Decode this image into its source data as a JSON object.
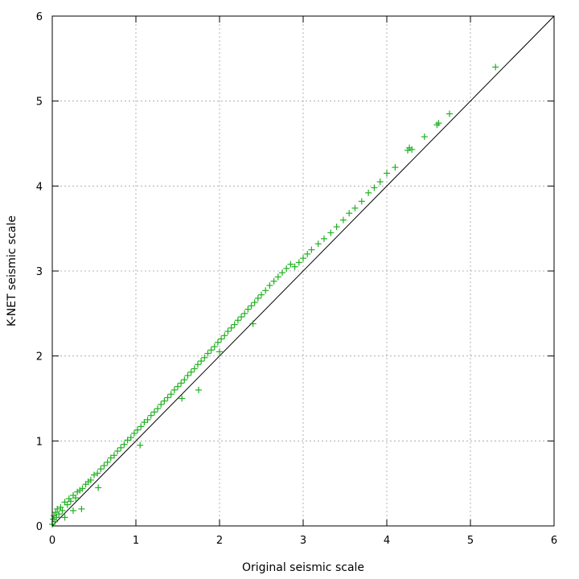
{
  "chart_data": {
    "type": "scatter",
    "title": "",
    "xlabel": "Original seismic scale",
    "ylabel": "K-NET seismic scale",
    "xlim": [
      0,
      6
    ],
    "ylim": [
      0,
      6
    ],
    "x_ticks": [
      "0",
      "1",
      "2",
      "3",
      "4",
      "5",
      "6"
    ],
    "y_ticks": [
      "0",
      "1",
      "2",
      "3",
      "4",
      "5",
      "6"
    ],
    "grid": true,
    "reference_line": {
      "from": [
        0,
        0
      ],
      "to": [
        6,
        6
      ]
    },
    "marker": "+",
    "colors": {
      "points": "#20b020",
      "reference": "#000000",
      "grid": "#a0a0a0"
    },
    "series": [
      {
        "values": [
          [
            0.0,
            0.02
          ],
          [
            0.01,
            0.08
          ],
          [
            0.02,
            0.12
          ],
          [
            0.03,
            0.05
          ],
          [
            0.04,
            0.16
          ],
          [
            0.05,
            0.1
          ],
          [
            0.06,
            0.2
          ],
          [
            0.08,
            0.14
          ],
          [
            0.1,
            0.22
          ],
          [
            0.12,
            0.18
          ],
          [
            0.15,
            0.28
          ],
          [
            0.18,
            0.25
          ],
          [
            0.2,
            0.32
          ],
          [
            0.22,
            0.29
          ],
          [
            0.25,
            0.36
          ],
          [
            0.28,
            0.33
          ],
          [
            0.3,
            0.4
          ],
          [
            0.33,
            0.42
          ],
          [
            0.36,
            0.44
          ],
          [
            0.4,
            0.49
          ],
          [
            0.43,
            0.52
          ],
          [
            0.46,
            0.54
          ],
          [
            0.5,
            0.6
          ],
          [
            0.54,
            0.62
          ],
          [
            0.58,
            0.67
          ],
          [
            0.62,
            0.71
          ],
          [
            0.66,
            0.75
          ],
          [
            0.7,
            0.8
          ],
          [
            0.74,
            0.83
          ],
          [
            0.78,
            0.88
          ],
          [
            0.82,
            0.92
          ],
          [
            0.86,
            0.96
          ],
          [
            0.9,
            1.01
          ],
          [
            0.94,
            1.04
          ],
          [
            0.98,
            1.09
          ],
          [
            1.02,
            1.13
          ],
          [
            1.06,
            1.17
          ],
          [
            1.1,
            1.22
          ],
          [
            1.14,
            1.25
          ],
          [
            1.18,
            1.3
          ],
          [
            1.22,
            1.34
          ],
          [
            1.26,
            1.38
          ],
          [
            1.3,
            1.43
          ],
          [
            1.34,
            1.47
          ],
          [
            1.38,
            1.51
          ],
          [
            1.42,
            1.55
          ],
          [
            1.46,
            1.6
          ],
          [
            1.5,
            1.64
          ],
          [
            1.54,
            1.68
          ],
          [
            1.58,
            1.72
          ],
          [
            1.62,
            1.77
          ],
          [
            1.66,
            1.81
          ],
          [
            1.7,
            1.85
          ],
          [
            1.74,
            1.9
          ],
          [
            1.78,
            1.94
          ],
          [
            1.82,
            1.98
          ],
          [
            1.86,
            2.03
          ],
          [
            1.9,
            2.07
          ],
          [
            1.94,
            2.11
          ],
          [
            1.98,
            2.16
          ],
          [
            2.02,
            2.2
          ],
          [
            2.06,
            2.24
          ],
          [
            2.1,
            2.29
          ],
          [
            2.14,
            2.33
          ],
          [
            2.18,
            2.37
          ],
          [
            2.22,
            2.42
          ],
          [
            2.26,
            2.46
          ],
          [
            2.3,
            2.5
          ],
          [
            2.34,
            2.55
          ],
          [
            2.38,
            2.59
          ],
          [
            2.42,
            2.63
          ],
          [
            2.46,
            2.68
          ],
          [
            2.5,
            2.72
          ],
          [
            2.55,
            2.77
          ],
          [
            2.6,
            2.83
          ],
          [
            2.65,
            2.88
          ],
          [
            2.7,
            2.93
          ],
          [
            2.75,
            2.98
          ],
          [
            2.8,
            3.03
          ],
          [
            2.85,
            3.08
          ],
          [
            2.9,
            3.05
          ],
          [
            2.95,
            3.1
          ],
          [
            3.0,
            3.15
          ],
          [
            3.05,
            3.2
          ],
          [
            3.1,
            3.25
          ],
          [
            3.18,
            3.32
          ],
          [
            3.25,
            3.38
          ],
          [
            3.33,
            3.45
          ],
          [
            3.4,
            3.52
          ],
          [
            3.48,
            3.6
          ],
          [
            3.55,
            3.68
          ],
          [
            3.62,
            3.74
          ],
          [
            3.7,
            3.82
          ],
          [
            3.78,
            3.92
          ],
          [
            3.85,
            3.98
          ],
          [
            3.92,
            4.05
          ],
          [
            4.0,
            4.15
          ],
          [
            4.1,
            4.22
          ],
          [
            4.25,
            4.42
          ],
          [
            4.27,
            4.45
          ],
          [
            4.3,
            4.43
          ],
          [
            4.45,
            4.58
          ],
          [
            4.6,
            4.72
          ],
          [
            4.62,
            4.74
          ],
          [
            4.75,
            4.85
          ],
          [
            5.3,
            5.4
          ],
          [
            0.35,
            0.2
          ],
          [
            0.55,
            0.45
          ],
          [
            1.75,
            1.6
          ],
          [
            1.05,
            0.95
          ],
          [
            2.0,
            2.05
          ],
          [
            0.15,
            0.1
          ],
          [
            0.25,
            0.18
          ],
          [
            1.55,
            1.5
          ],
          [
            2.4,
            2.38
          ]
        ]
      }
    ]
  }
}
